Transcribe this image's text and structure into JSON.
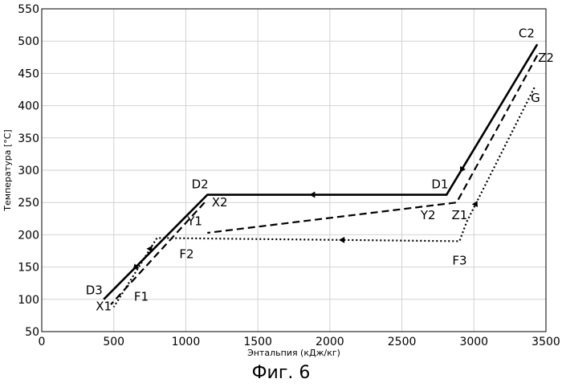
{
  "chart_data": {
    "type": "line",
    "title": "",
    "xlabel": "Энтальпия (кДж/кг)",
    "ylabel": "Температура [°C]",
    "xlim": [
      0,
      3500
    ],
    "ylim": [
      50,
      550
    ],
    "xticks": [
      0,
      500,
      1000,
      1500,
      2000,
      2500,
      3000,
      3500
    ],
    "yticks": [
      50,
      100,
      150,
      200,
      250,
      300,
      350,
      400,
      450,
      500,
      550
    ],
    "grid": true,
    "series": [
      {
        "style": "solid",
        "points": [
          [
            3440,
            495
          ],
          [
            2810,
            262
          ],
          [
            1150,
            262
          ],
          [
            430,
            100
          ]
        ]
      },
      {
        "style": "dashed",
        "points": [
          [
            3440,
            478
          ],
          [
            2880,
            250
          ],
          [
            1150,
            203
          ]
        ]
      },
      {
        "style": "dashed",
        "points": [
          [
            1130,
            250
          ],
          [
            480,
            92
          ]
        ]
      },
      {
        "style": "dotted",
        "points": [
          [
            3420,
            428
          ],
          [
            2950,
            220
          ],
          [
            2900,
            190
          ],
          [
            800,
            195
          ],
          [
            500,
            88
          ]
        ]
      }
    ],
    "annotations": [
      {
        "text": "C2",
        "x": 3310,
        "y": 506
      },
      {
        "text": "Z2",
        "x": 3445,
        "y": 468
      },
      {
        "text": "G",
        "x": 3395,
        "y": 406
      },
      {
        "text": "D1",
        "x": 2705,
        "y": 272
      },
      {
        "text": "Y2",
        "x": 2630,
        "y": 224
      },
      {
        "text": "Z1",
        "x": 2845,
        "y": 224
      },
      {
        "text": "F3",
        "x": 2850,
        "y": 154
      },
      {
        "text": "D2",
        "x": 1040,
        "y": 272
      },
      {
        "text": "X2",
        "x": 1180,
        "y": 244
      },
      {
        "text": "Y1",
        "x": 1010,
        "y": 215
      },
      {
        "text": "F2",
        "x": 955,
        "y": 164
      },
      {
        "text": "D3",
        "x": 305,
        "y": 108
      },
      {
        "text": "F1",
        "x": 640,
        "y": 98
      },
      {
        "text": "X1",
        "x": 375,
        "y": 83
      }
    ]
  },
  "caption": "Фиг. 6"
}
